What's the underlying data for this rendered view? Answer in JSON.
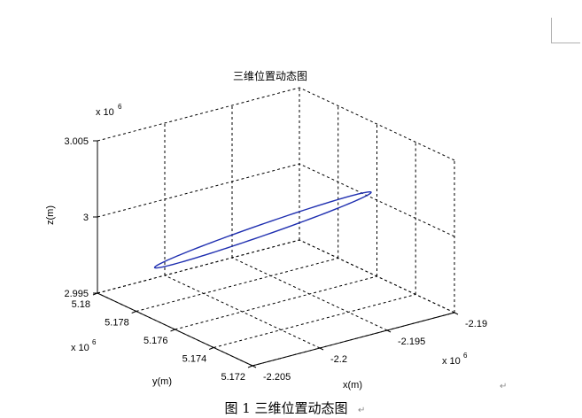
{
  "caption": "图 1  三维位置动态图",
  "paragraph_mark": "↵",
  "chart_data": {
    "type": "line",
    "title": "三维位置动态图",
    "xlabel": "x(m)",
    "ylabel": "y(m)",
    "zlabel": "z(m)",
    "x_exponent": "x 10",
    "y_exponent": "x 10",
    "z_exponent": "x 10",
    "exponent_power": "6",
    "xlim": [
      -2.205,
      -2.19
    ],
    "ylim": [
      5.172,
      5.18
    ],
    "zlim": [
      2.995,
      3.005
    ],
    "x_ticks": [
      "-2.205",
      "-2.2",
      "-2.195",
      "-2.19"
    ],
    "x_tick_values": [
      -2.205,
      -2.2,
      -2.195,
      -2.19
    ],
    "y_ticks": [
      "5.172",
      "5.174",
      "5.176",
      "5.178",
      "5.18"
    ],
    "y_tick_values": [
      5.172,
      5.174,
      5.176,
      5.178,
      5.18
    ],
    "z_ticks": [
      "2.995",
      "3",
      "3.005"
    ],
    "z_tick_values": [
      2.995,
      3.0,
      3.005
    ],
    "grid": true,
    "box": false,
    "line_color": "#1f2fb0",
    "series": [
      {
        "orbit_center": [
          -2.19775,
          5.1765,
          2.99955
        ],
        "orbit_axis_major": [
          0.0048,
          -0.00225,
          0.0027
        ],
        "orbit_axis_minor": [
          0.0003,
          0.00035,
          5e-05
        ]
      }
    ]
  }
}
